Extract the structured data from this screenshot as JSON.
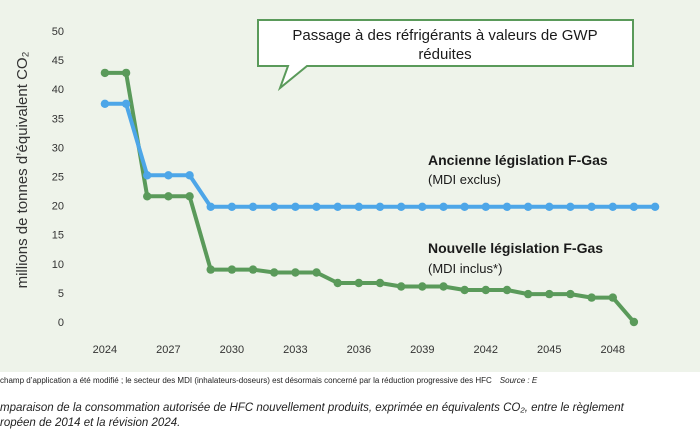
{
  "chart_data": {
    "type": "line",
    "xlabel": "",
    "ylabel": "millions de tonnes d’équivalent CO₂",
    "ylim": [
      0,
      50
    ],
    "xlim": [
      2023.2,
      2050.8
    ],
    "y_ticks": [
      "0",
      "5",
      "10",
      "15",
      "20",
      "25",
      "30",
      "35",
      "40",
      "45",
      "50"
    ],
    "x_ticks": [
      "2024",
      "2027",
      "2030",
      "2033",
      "2036",
      "2039",
      "2042",
      "2045",
      "2048"
    ],
    "grid": false,
    "callout": "Passage à des réfrigérants à valeurs de GWP réduites",
    "series": [
      {
        "name": "Ancienne législation F-Gas",
        "subtitle": "(MDI exclus)",
        "color": "#4da6e8",
        "x": [
          2024,
          2025,
          2026,
          2027,
          2028,
          2029,
          2030,
          2031,
          2032,
          2033,
          2034,
          2035,
          2036,
          2037,
          2038,
          2039,
          2040,
          2041,
          2042,
          2043,
          2044,
          2045,
          2046,
          2047,
          2048,
          2049,
          2050
        ],
        "y": [
          37.5,
          37.5,
          25.2,
          25.2,
          25.2,
          19.8,
          19.8,
          19.8,
          19.8,
          19.8,
          19.8,
          19.8,
          19.8,
          19.8,
          19.8,
          19.8,
          19.8,
          19.8,
          19.8,
          19.8,
          19.8,
          19.8,
          19.8,
          19.8,
          19.8,
          19.8,
          19.8
        ]
      },
      {
        "name": "Nouvelle législation F-Gas",
        "subtitle": "(MDI inclus*)",
        "color": "#5a9a5a",
        "x": [
          2024,
          2025,
          2026,
          2027,
          2028,
          2029,
          2030,
          2031,
          2032,
          2033,
          2034,
          2035,
          2036,
          2037,
          2038,
          2039,
          2040,
          2041,
          2042,
          2043,
          2044,
          2045,
          2046,
          2047,
          2048,
          2049,
          2050
        ],
        "y": [
          42.8,
          42.8,
          21.6,
          21.6,
          21.6,
          9.0,
          9.0,
          9.0,
          8.5,
          8.5,
          8.5,
          6.7,
          6.7,
          6.7,
          6.1,
          6.1,
          6.1,
          5.5,
          5.5,
          5.5,
          4.8,
          4.8,
          4.8,
          4.2,
          4.2,
          0.0,
          null
        ]
      }
    ]
  },
  "footnote": {
    "text": "champ d’application a été modifié ; le secteur des MDI (inhalateurs-doseurs) est désormais concerné par la réduction progressive des HFC",
    "source": "Source : E"
  },
  "caption": {
    "line1": "mparaison de la consommation autorisée de HFC nouvellement produits, exprimée en équivalents CO₂, entre le règlement",
    "line2": "ropéen de 2014 et la révision 2024."
  }
}
